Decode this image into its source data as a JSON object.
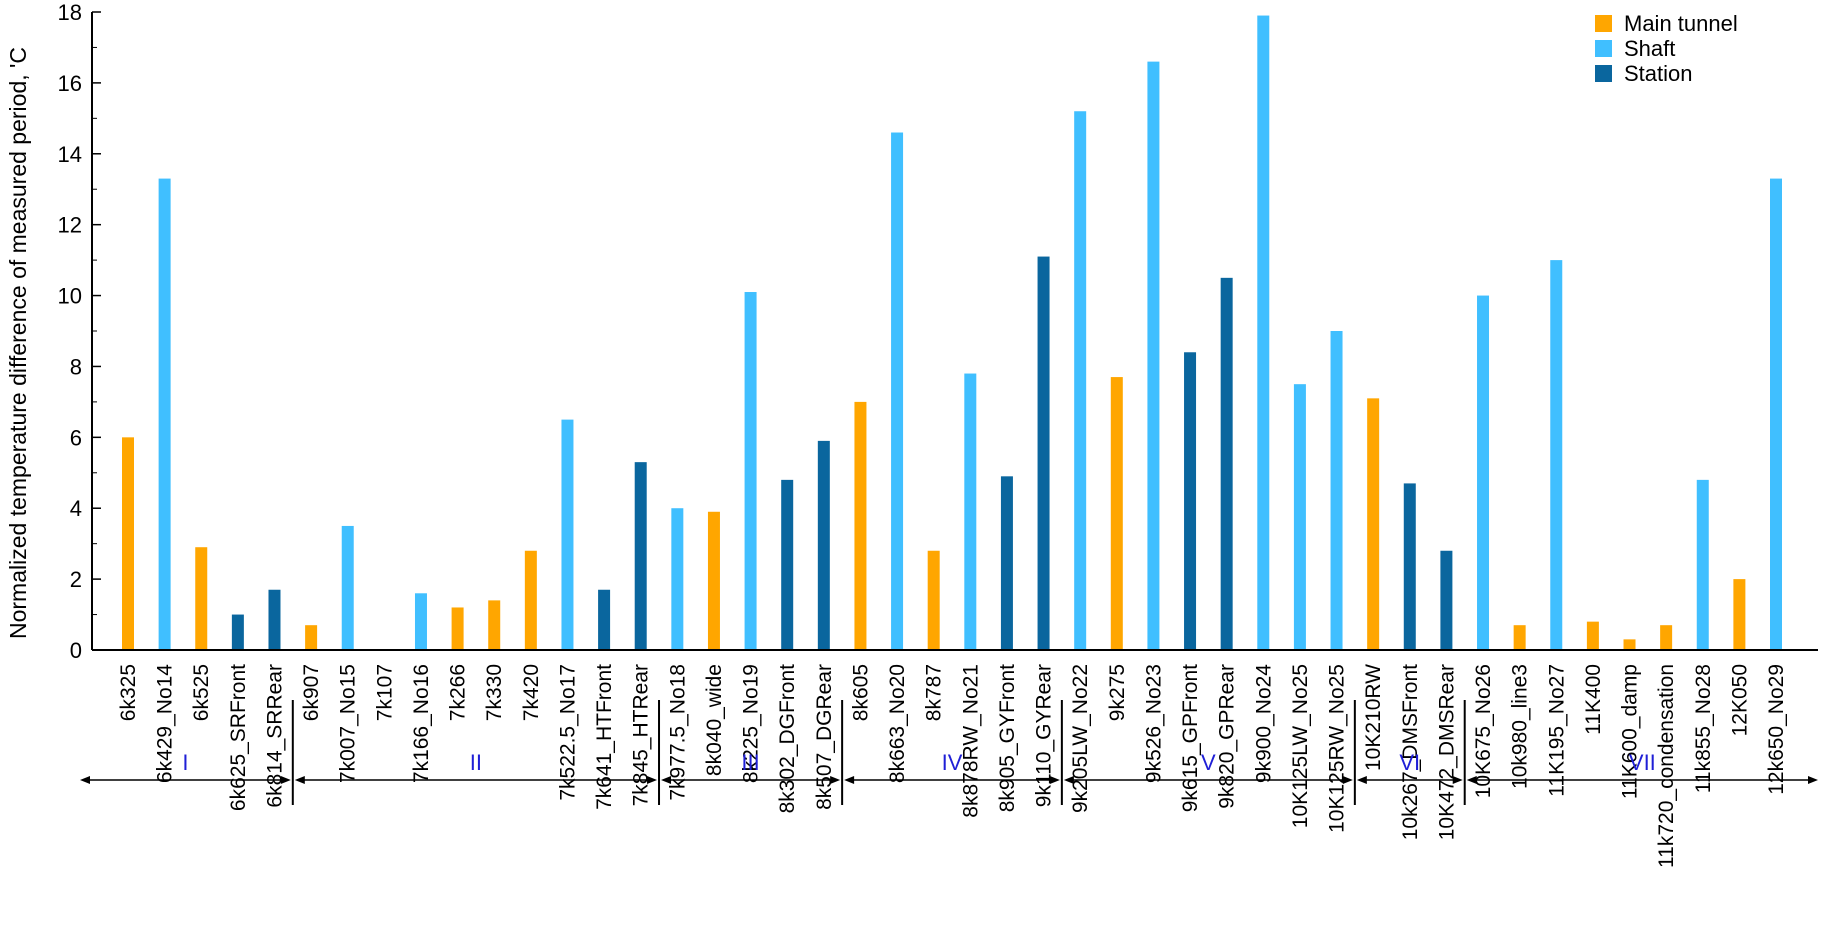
{
  "chart_data": {
    "type": "bar",
    "ylabel": "Normalized temperature difference of measured period, 'C",
    "ylim": [
      0,
      18
    ],
    "yticks": [
      0,
      2,
      4,
      6,
      8,
      10,
      12,
      14,
      16,
      18
    ],
    "legend_position": "top-right",
    "series_legend": [
      {
        "name": "Main tunnel",
        "color": "#FFA600"
      },
      {
        "name": "Shaft",
        "color": "#40BFFF"
      },
      {
        "name": "Station",
        "color": "#0A669E"
      }
    ],
    "bars": [
      {
        "label": "6k325",
        "value": 6.0,
        "series": "Main tunnel"
      },
      {
        "label": "6k429_No14",
        "value": 13.3,
        "series": "Shaft"
      },
      {
        "label": "6k525",
        "value": 2.9,
        "series": "Main tunnel"
      },
      {
        "label": "6k625_SRFront",
        "value": 1.0,
        "series": "Station"
      },
      {
        "label": "6k814_SRRear",
        "value": 1.7,
        "series": "Station"
      },
      {
        "label": "6k907",
        "value": 0.7,
        "series": "Main tunnel"
      },
      {
        "label": "7k007_No15",
        "value": 3.5,
        "series": "Shaft"
      },
      {
        "label": "7k107",
        "value": 0,
        "series": "Main tunnel"
      },
      {
        "label": "7k166_No16",
        "value": 1.6,
        "series": "Shaft"
      },
      {
        "label": "7k266",
        "value": 1.2,
        "series": "Main tunnel"
      },
      {
        "label": "7k330",
        "value": 1.4,
        "series": "Main tunnel"
      },
      {
        "label": "7k420",
        "value": 2.8,
        "series": "Main tunnel"
      },
      {
        "label": "7k522.5_No17",
        "value": 6.5,
        "series": "Shaft"
      },
      {
        "label": "7k641_HTFront",
        "value": 1.7,
        "series": "Station"
      },
      {
        "label": "7k845_HTRear",
        "value": 5.3,
        "series": "Station"
      },
      {
        "label": "7k977.5_No18",
        "value": 4.0,
        "series": "Shaft"
      },
      {
        "label": "8k040_wide",
        "value": 3.9,
        "series": "Main tunnel"
      },
      {
        "label": "8k225_No19",
        "value": 10.1,
        "series": "Shaft"
      },
      {
        "label": "8k302_DGFront",
        "value": 4.8,
        "series": "Station"
      },
      {
        "label": "8k507_DGRear",
        "value": 5.9,
        "series": "Station"
      },
      {
        "label": "8k605",
        "value": 7.0,
        "series": "Main tunnel"
      },
      {
        "label": "8k663_No20",
        "value": 14.6,
        "series": "Shaft"
      },
      {
        "label": "8k787",
        "value": 2.8,
        "series": "Main tunnel"
      },
      {
        "label": "8k878RW_No21",
        "value": 7.8,
        "series": "Shaft"
      },
      {
        "label": "8k905_GYFront",
        "value": 4.9,
        "series": "Station"
      },
      {
        "label": "9k110_GYRear",
        "value": 11.1,
        "series": "Station"
      },
      {
        "label": "9k205LW_No22",
        "value": 15.2,
        "series": "Shaft"
      },
      {
        "label": "9k275",
        "value": 7.7,
        "series": "Main tunnel"
      },
      {
        "label": "9k526_No23",
        "value": 16.6,
        "series": "Shaft"
      },
      {
        "label": "9k615_GPFront",
        "value": 8.4,
        "series": "Station"
      },
      {
        "label": "9k820_GPRear",
        "value": 10.5,
        "series": "Station"
      },
      {
        "label": "9k900_No24",
        "value": 17.9,
        "series": "Shaft"
      },
      {
        "label": "10K125LW_No25",
        "value": 7.5,
        "series": "Shaft"
      },
      {
        "label": "10K125RW_No25",
        "value": 9.0,
        "series": "Shaft"
      },
      {
        "label": "10K210RW",
        "value": 7.1,
        "series": "Main tunnel"
      },
      {
        "label": "10k267_DMSFront",
        "value": 4.7,
        "series": "Station"
      },
      {
        "label": "10K472_DMSRear",
        "value": 2.8,
        "series": "Station"
      },
      {
        "label": "10K675_No26",
        "value": 10.0,
        "series": "Shaft"
      },
      {
        "label": "10k980_line3",
        "value": 0.7,
        "series": "Main tunnel"
      },
      {
        "label": "11K195_No27",
        "value": 11.0,
        "series": "Shaft"
      },
      {
        "label": "11K400",
        "value": 0.8,
        "series": "Main tunnel"
      },
      {
        "label": "11K600_damp",
        "value": 0.3,
        "series": "Main tunnel"
      },
      {
        "label": "11k720_condensation",
        "value": 0.7,
        "series": "Main tunnel"
      },
      {
        "label": "11k855_No28",
        "value": 4.8,
        "series": "Shaft"
      },
      {
        "label": "12K050",
        "value": 2.0,
        "series": "Main tunnel"
      },
      {
        "label": "12k650_No29",
        "value": 13.3,
        "series": "Shaft"
      }
    ],
    "sections": [
      {
        "name": "I",
        "first": 0,
        "last": 4
      },
      {
        "name": "II",
        "first": 5,
        "last": 14
      },
      {
        "name": "III",
        "first": 15,
        "last": 19
      },
      {
        "name": "IV",
        "first": 20,
        "last": 25
      },
      {
        "name": "V",
        "first": 26,
        "last": 33
      },
      {
        "name": "VI",
        "first": 34,
        "last": 36
      },
      {
        "name": "VII",
        "first": 37,
        "last": 45
      }
    ]
  }
}
